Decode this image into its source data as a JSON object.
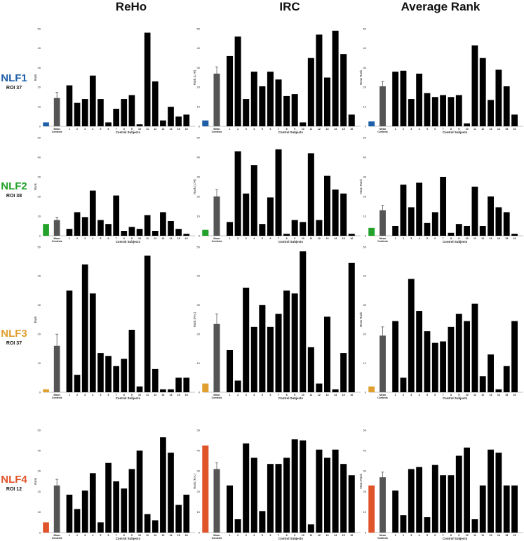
{
  "column_titles": [
    "ReHo",
    "IRC",
    "Average Rank"
  ],
  "rows": [
    {
      "name": "NLF1",
      "roi": "ROI 37",
      "color": "#1f5fa8"
    },
    {
      "name": "NLF2",
      "roi": "ROI 38",
      "color": "#22a22a"
    },
    {
      "name": "NLF3",
      "roi": "ROI 37",
      "color": "#e0a030"
    },
    {
      "name": "NLF4",
      "roi": "ROI 12",
      "color": "#e0542a"
    }
  ],
  "colors": {
    "control": "#000000",
    "mean": "#555555",
    "error": "#444444"
  },
  "chart_data": [
    {
      "type": "bar",
      "panel": "NLF1 ReHo",
      "title": "ReHo",
      "ylabel": "Rank",
      "xlabel": "Control Subjects",
      "mean_label": [
        "Mean",
        "Controls"
      ],
      "categories": [
        "1",
        "2",
        "3",
        "4",
        "5",
        "6",
        "7",
        "8",
        "9",
        "10",
        "11",
        "12",
        "13",
        "14",
        "15",
        "16"
      ],
      "patient": 2,
      "mean": 14.5,
      "mean_error": 3,
      "values": [
        21,
        12,
        14,
        26,
        14,
        2,
        9,
        14,
        16,
        1,
        48,
        23,
        3,
        10,
        5,
        6
      ],
      "ylim": [
        0,
        50
      ],
      "yticks": [
        0,
        10,
        20,
        30,
        40,
        50
      ]
    },
    {
      "type": "bar",
      "panel": "NLF1 IRC",
      "title": "IRC",
      "ylabel": "Rank (L>R)",
      "xlabel": "Control Subjects",
      "mean_label": [
        "Mean",
        "Controls"
      ],
      "categories": [
        "1",
        "2",
        "3",
        "4",
        "5",
        "6",
        "7",
        "8",
        "9",
        "10",
        "11",
        "12",
        "13",
        "14",
        "15",
        "16"
      ],
      "patient": 3,
      "mean": 27,
      "mean_error": 3.5,
      "values": [
        36,
        46,
        14,
        28,
        20.5,
        28,
        24,
        15.5,
        16.5,
        2,
        35,
        47,
        25,
        49,
        37,
        6
      ],
      "ylim": [
        0,
        50
      ],
      "yticks": [
        0,
        10,
        20,
        30,
        40,
        50
      ]
    },
    {
      "type": "bar",
      "panel": "NLF1 Average Rank",
      "title": "Average Rank",
      "ylabel": "Mean Rank",
      "xlabel": "Control Subjects",
      "mean_label": [
        "Mean",
        "Controls"
      ],
      "categories": [
        "1",
        "2",
        "3",
        "4",
        "5",
        "6",
        "7",
        "8",
        "9",
        "10",
        "11",
        "12",
        "13",
        "14",
        "15",
        "16"
      ],
      "patient": 2.5,
      "mean": 20.5,
      "mean_error": 2.5,
      "values": [
        28,
        28.5,
        14,
        27,
        17,
        15,
        16,
        15,
        16,
        1.5,
        41.5,
        35,
        13.5,
        29,
        20.5,
        6
      ],
      "ylim": [
        0,
        50
      ],
      "yticks": [
        0,
        10,
        20,
        30,
        40,
        50
      ]
    },
    {
      "type": "bar",
      "panel": "NLF2 ReHo",
      "title": "ReHo",
      "ylabel": "Rank",
      "xlabel": "Control Subjects",
      "mean_label": [
        "Mean",
        "Controls"
      ],
      "categories": [
        "1",
        "2",
        "3",
        "4",
        "5",
        "6",
        "7",
        "8",
        "9",
        "10",
        "11",
        "12",
        "13",
        "14",
        "15",
        "16"
      ],
      "patient": 6,
      "mean": 8,
      "mean_error": 1.5,
      "values": [
        3.5,
        12,
        9.5,
        23,
        8,
        6,
        20.5,
        2.5,
        4.5,
        3.5,
        10.5,
        2.5,
        12,
        7.5,
        3.5,
        1
      ],
      "ylim": [
        0,
        50
      ],
      "yticks": [
        0,
        10,
        20,
        30,
        40,
        50
      ]
    },
    {
      "type": "bar",
      "panel": "NLF2 IRC",
      "title": "IRC",
      "ylabel": "Rank (L>R)",
      "xlabel": "Control Subjects",
      "mean_label": [
        "Mean",
        "Controls"
      ],
      "categories": [
        "1",
        "2",
        "3",
        "4",
        "5",
        "6",
        "7",
        "8",
        "9",
        "10",
        "11",
        "12",
        "13",
        "14",
        "15",
        "16"
      ],
      "patient": 3,
      "mean": 20,
      "mean_error": 3.5,
      "values": [
        7,
        43,
        21.5,
        36,
        6,
        19.5,
        44,
        1,
        8,
        7,
        42,
        8,
        30.5,
        23.5,
        21.5,
        1
      ],
      "ylim": [
        0,
        50
      ],
      "yticks": [
        0,
        10,
        20,
        30,
        40,
        50
      ]
    },
    {
      "type": "bar",
      "panel": "NLF2 Average Rank",
      "title": "Average Rank",
      "ylabel": "Mean Rank",
      "xlabel": "Control Subjects",
      "mean_label": [
        "Mean",
        "Controls"
      ],
      "categories": [
        "1",
        "2",
        "3",
        "4",
        "5",
        "6",
        "7",
        "8",
        "9",
        "10",
        "11",
        "12",
        "13",
        "14",
        "15",
        "16"
      ],
      "patient": 4,
      "mean": 13,
      "mean_error": 2.5,
      "values": [
        5,
        26,
        14.5,
        27,
        6.5,
        12,
        30,
        1.5,
        6,
        5,
        25,
        5,
        20,
        14.5,
        12,
        1
      ],
      "ylim": [
        0,
        50
      ],
      "yticks": [
        0,
        10,
        20,
        30,
        40,
        50
      ]
    },
    {
      "type": "bar",
      "panel": "NLF3 ReHo",
      "title": "ReHo",
      "ylabel": "Rank",
      "xlabel": "Control Subjects",
      "mean_label": [
        "Mean",
        "Controls"
      ],
      "categories": [
        "1",
        "2",
        "3",
        "4",
        "5",
        "6",
        "7",
        "8",
        "9",
        "10",
        "11",
        "12",
        "13",
        "14",
        "15",
        "16"
      ],
      "patient": 1,
      "mean": 16,
      "mean_error": 4,
      "values": [
        35,
        6,
        44,
        34,
        13.5,
        12.5,
        9,
        11.5,
        21.5,
        2,
        47,
        8,
        1,
        1,
        5,
        5
      ],
      "ylim": [
        0,
        50
      ],
      "yticks": [
        0,
        10,
        20,
        30,
        40,
        50
      ]
    },
    {
      "type": "bar",
      "panel": "NLF3 IRC",
      "title": "IRC",
      "ylabel": "Rank (R>L)",
      "xlabel": "Control Subjects",
      "mean_label": [
        "Mean",
        "Controls"
      ],
      "categories": [
        "1",
        "2",
        "3",
        "4",
        "5",
        "6",
        "7",
        "8",
        "9",
        "10",
        "11",
        "12",
        "13",
        "14",
        "15",
        "16"
      ],
      "patient": 3,
      "mean": 23.5,
      "mean_error": 3.5,
      "values": [
        14.5,
        4,
        36,
        22.5,
        30,
        22.5,
        27,
        35,
        34,
        48.5,
        15.5,
        3,
        26,
        1,
        13.5,
        44.5
      ],
      "ylim": [
        0,
        50
      ],
      "yticks": [
        0,
        10,
        20,
        30,
        40,
        50
      ]
    },
    {
      "type": "bar",
      "panel": "NLF3 Average Rank",
      "title": "Average Rank",
      "ylabel": "Mean Rank",
      "xlabel": "Control Subjects",
      "mean_label": [
        "Mean",
        "Controls"
      ],
      "categories": [
        "1",
        "2",
        "3",
        "4",
        "5",
        "6",
        "7",
        "8",
        "9",
        "10",
        "11",
        "12",
        "13",
        "14",
        "15",
        "16"
      ],
      "patient": 2,
      "mean": 19.5,
      "mean_error": 3,
      "values": [
        24.5,
        5,
        39,
        28,
        21,
        17,
        17.5,
        22.5,
        27,
        24.5,
        30.5,
        5.5,
        13,
        1,
        9,
        24.5
      ],
      "ylim": [
        0,
        50
      ],
      "yticks": [
        0,
        10,
        20,
        30,
        40,
        50
      ]
    },
    {
      "type": "bar",
      "panel": "NLF4 ReHo",
      "title": "ReHo",
      "ylabel": "Rank",
      "xlabel": "Control Subjects",
      "mean_label": [
        "Mean",
        "Controls"
      ],
      "categories": [
        "1",
        "2",
        "3",
        "4",
        "5",
        "6",
        "7",
        "8",
        "9",
        "10",
        "11",
        "12",
        "13",
        "14",
        "15",
        "16"
      ],
      "patient": 5,
      "mean": 23,
      "mean_error": 3,
      "values": [
        18.5,
        11.5,
        20.5,
        29,
        5,
        34,
        25,
        21.5,
        31,
        40,
        9,
        6,
        46.5,
        39,
        13.5,
        18.5
      ],
      "ylim": [
        0,
        50
      ],
      "yticks": [
        0,
        10,
        20,
        30,
        40,
        50
      ]
    },
    {
      "type": "bar",
      "panel": "NLF4 IRC",
      "title": "IRC",
      "ylabel": "Rank (R>L)",
      "xlabel": "Control Subjects",
      "mean_label": [
        "Mean",
        "Controls"
      ],
      "categories": [
        "1",
        "2",
        "3",
        "4",
        "5",
        "6",
        "7",
        "8",
        "9",
        "10",
        "11",
        "12",
        "13",
        "14",
        "15",
        "16"
      ],
      "patient": 42.5,
      "mean": 31,
      "mean_error": 3,
      "values": [
        23,
        6.5,
        43.5,
        36.5,
        10.5,
        33.5,
        33.5,
        36.5,
        45.5,
        45,
        4,
        40.5,
        36.5,
        40.5,
        33.5,
        28
      ],
      "ylim": [
        0,
        50
      ],
      "yticks": [
        0,
        10,
        20,
        30,
        40,
        50
      ]
    },
    {
      "type": "bar",
      "panel": "NLF4 Average Rank",
      "title": "Average Rank",
      "ylabel": "Mean Rank",
      "xlabel": "Control Subjects",
      "mean_label": [
        "Mean",
        "Controls"
      ],
      "categories": [
        "1",
        "2",
        "3",
        "4",
        "5",
        "6",
        "7",
        "8",
        "9",
        "10",
        "11",
        "12",
        "13",
        "14",
        "15",
        "16"
      ],
      "patient": 23,
      "mean": 27,
      "mean_error": 2.5,
      "values": [
        20.5,
        8.5,
        31,
        32,
        7.5,
        33,
        28,
        28,
        37.5,
        41.5,
        6.5,
        23,
        40.5,
        39,
        23,
        23
      ],
      "ylim": [
        0,
        50
      ],
      "yticks": [
        0,
        10,
        20,
        30,
        40,
        50
      ]
    }
  ]
}
